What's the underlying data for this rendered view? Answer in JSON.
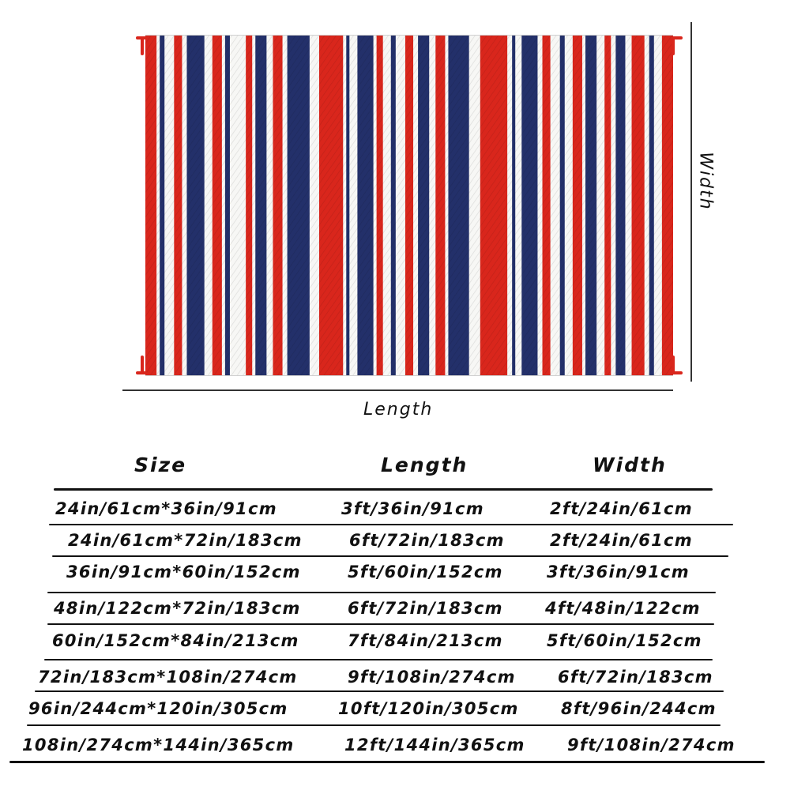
{
  "diagram": {
    "length_label": "Length",
    "width_label": "Width",
    "stripe_colors": {
      "red": "#d9261c",
      "navy": "#23306a",
      "white": "#f7f7f5"
    }
  },
  "table": {
    "headers": {
      "size": "Size",
      "length": "Length",
      "width": "Width"
    },
    "rows": [
      {
        "size": "24in/61cm*36in/91cm",
        "length": "3ft/36in/91cm",
        "width": "2ft/24in/61cm"
      },
      {
        "size": "24in/61cm*72in/183cm",
        "length": "6ft/72in/183cm",
        "width": "2ft/24in/61cm"
      },
      {
        "size": "36in/91cm*60in/152cm",
        "length": "5ft/60in/152cm",
        "width": "3ft/36in/91cm"
      },
      {
        "size": "48in/122cm*72in/183cm",
        "length": "6ft/72in/183cm",
        "width": "4ft/48in/122cm"
      },
      {
        "size": "60in/152cm*84in/213cm",
        "length": "7ft/84in/213cm",
        "width": "5ft/60in/152cm"
      },
      {
        "size": "72in/183cm*108in/274cm",
        "length": "9ft/108in/274cm",
        "width": "6ft/72in/183cm"
      },
      {
        "size": "96in/244cm*120in/305cm",
        "length": "10ft/120in/305cm",
        "width": "8ft/96in/244cm"
      },
      {
        "size": "108in/274cm*144in/365cm",
        "length": "12ft/144in/365cm",
        "width": "9ft/108in/274cm"
      }
    ]
  }
}
